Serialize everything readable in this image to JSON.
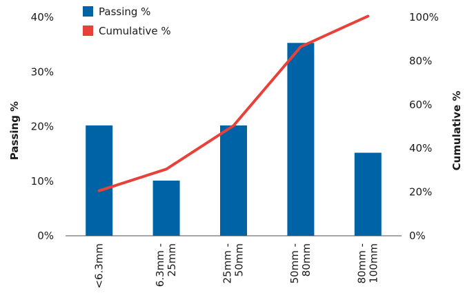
{
  "chart_data": {
    "type": "bar",
    "categories": [
      [
        "<6.3mm"
      ],
      [
        "6.3mm -",
        "25mm"
      ],
      [
        "25mm -",
        "50mm"
      ],
      [
        "50mm -",
        "80mm"
      ],
      [
        "80mm -",
        "100mm"
      ]
    ],
    "series": [
      {
        "name": "Passing %",
        "type": "bar",
        "axis": "left",
        "color": "#0063a6",
        "values": [
          20.2,
          10.1,
          20.2,
          35.3,
          15.2
        ]
      },
      {
        "name": "Cumulative %",
        "type": "line",
        "axis": "right",
        "color": "#e8413a",
        "values": [
          20.6,
          30.5,
          50.4,
          86.5,
          100.5
        ]
      }
    ],
    "ylabel": "Passing %",
    "y2label": "Cumulative %",
    "ylim": [
      0,
      40
    ],
    "y2lim": [
      0,
      100
    ],
    "yticks": [
      "0%",
      "10%",
      "20%",
      "30%",
      "40%"
    ],
    "y2ticks": [
      "0%",
      "20%",
      "40%",
      "60%",
      "80%",
      "100%"
    ],
    "grid": false,
    "legend_position": "top-left"
  }
}
